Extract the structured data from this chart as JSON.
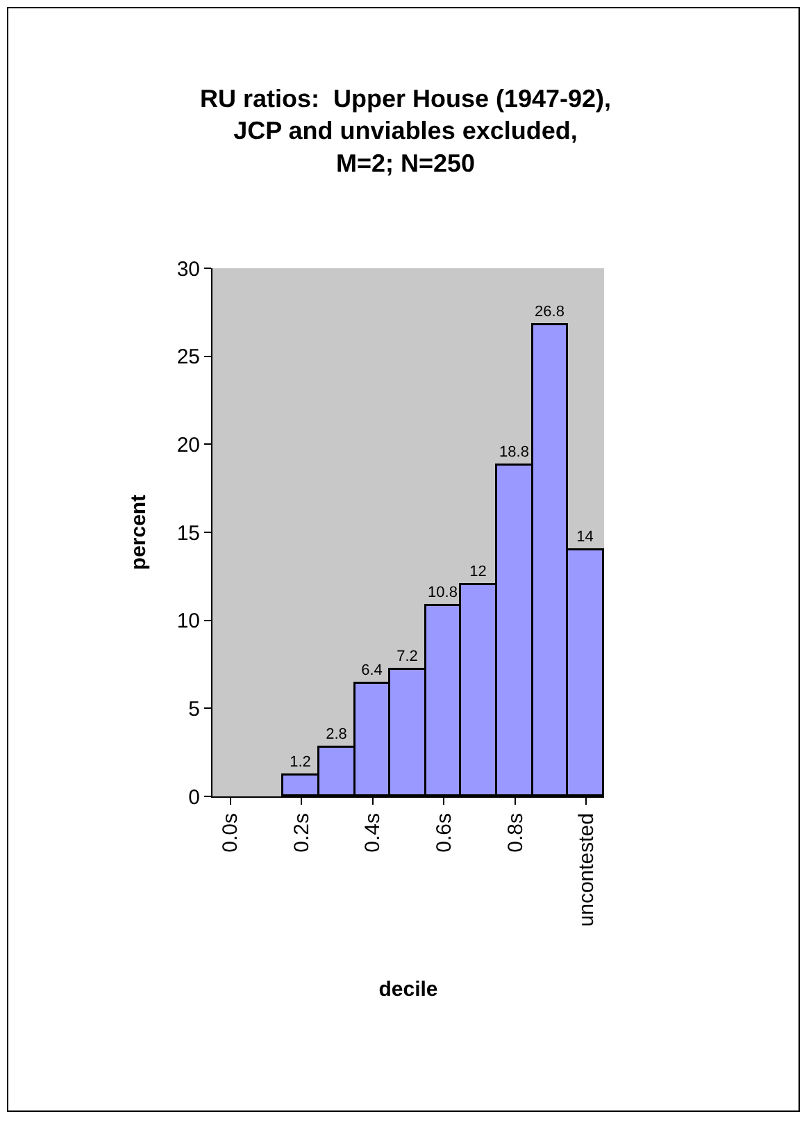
{
  "chart_data": {
    "type": "bar",
    "title": "RU ratios:  Upper House (1947-92),\nJCP and unviables excluded,\nM=2; N=250",
    "xlabel": "decile",
    "ylabel": "percent",
    "categories": [
      "0.0s",
      null,
      "0.2s",
      null,
      "0.4s",
      null,
      "0.6s",
      null,
      "0.8s",
      null,
      "uncontested"
    ],
    "values": [
      0,
      0,
      1.2,
      2.8,
      6.4,
      7.2,
      10.8,
      12,
      18.8,
      26.8,
      14
    ],
    "value_labels": [
      null,
      null,
      "1.2",
      "2.8",
      "6.4",
      "7.2",
      "10.8",
      "12",
      "18.8",
      "26.8",
      "14"
    ],
    "color": "#9999ff",
    "ylim": [
      0,
      30
    ],
    "yticks": [
      0,
      5,
      10,
      15,
      20,
      25,
      30
    ],
    "grid": false
  }
}
